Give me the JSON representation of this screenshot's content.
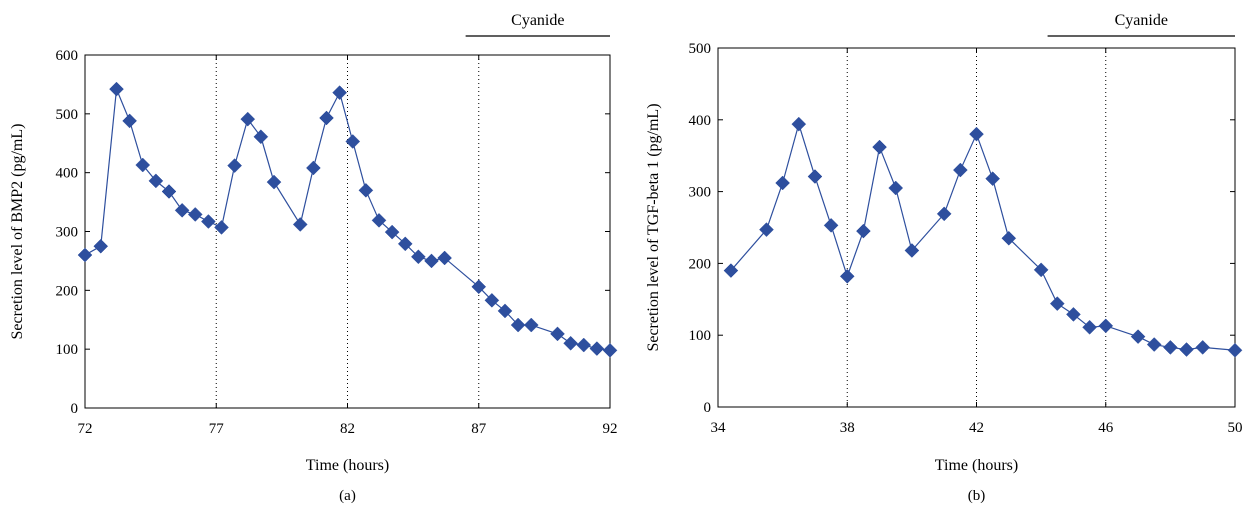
{
  "chart_data": [
    {
      "type": "line",
      "panel_label": "(a)",
      "xlabel": "Time (hours)",
      "ylabel": "Secretion level of BMP2 (pg/mL)",
      "xlim": [
        72,
        92
      ],
      "ylim": [
        0,
        600
      ],
      "xticks": [
        "72",
        "77",
        "82",
        "87",
        "92"
      ],
      "yticks": [
        "0",
        "100",
        "200",
        "300",
        "400",
        "500",
        "600"
      ],
      "vlines": [
        77,
        82,
        87
      ],
      "annotation": {
        "label": "Cyanide",
        "x_start": 86.5,
        "x_end": 92
      },
      "series": [
        {
          "color": "#2e4f9e",
          "marker": "diamond",
          "points": [
            [
              72.0,
              260
            ],
            [
              72.6,
              275
            ],
            [
              73.2,
              542
            ],
            [
              73.7,
              488
            ],
            [
              74.2,
              413
            ],
            [
              74.7,
              386
            ],
            [
              75.2,
              368
            ],
            [
              75.7,
              336
            ],
            [
              76.2,
              329
            ],
            [
              76.7,
              317
            ],
            [
              77.2,
              307
            ],
            [
              77.7,
              412
            ],
            [
              78.2,
              491
            ],
            [
              78.7,
              461
            ],
            [
              79.2,
              384
            ],
            [
              80.2,
              312
            ],
            [
              80.7,
              408
            ],
            [
              81.2,
              493
            ],
            [
              81.7,
              536
            ],
            [
              82.2,
              453
            ],
            [
              82.7,
              370
            ],
            [
              83.2,
              319
            ],
            [
              83.7,
              299
            ],
            [
              84.2,
              279
            ],
            [
              84.7,
              257
            ],
            [
              85.2,
              250
            ],
            [
              85.7,
              255
            ],
            [
              87.0,
              206
            ],
            [
              87.5,
              183
            ],
            [
              88.0,
              165
            ],
            [
              88.5,
              141
            ],
            [
              89.0,
              141
            ],
            [
              90.0,
              126
            ],
            [
              90.5,
              110
            ],
            [
              91.0,
              107
            ],
            [
              91.5,
              101
            ],
            [
              92.0,
              98
            ]
          ]
        }
      ]
    },
    {
      "type": "line",
      "panel_label": "(b)",
      "xlabel": "Time (hours)",
      "ylabel": "Secretion level of TGF-beta 1 (pg/mL)",
      "xlim": [
        34,
        50
      ],
      "ylim": [
        0,
        500
      ],
      "xticks": [
        "34",
        "38",
        "42",
        "46",
        "50"
      ],
      "yticks": [
        "0",
        "100",
        "200",
        "300",
        "400",
        "500"
      ],
      "vlines": [
        38,
        42,
        46
      ],
      "annotation": {
        "label": "Cyanide",
        "x_start": 44.2,
        "x_end": 50
      },
      "series": [
        {
          "color": "#2e4f9e",
          "marker": "diamond",
          "points": [
            [
              34.4,
              190
            ],
            [
              35.5,
              247
            ],
            [
              36.0,
              312
            ],
            [
              36.5,
              394
            ],
            [
              37.0,
              321
            ],
            [
              37.5,
              253
            ],
            [
              38.0,
              182
            ],
            [
              38.5,
              245
            ],
            [
              39.0,
              362
            ],
            [
              39.5,
              305
            ],
            [
              40.0,
              218
            ],
            [
              41.0,
              269
            ],
            [
              41.5,
              330
            ],
            [
              42.0,
              380
            ],
            [
              42.5,
              318
            ],
            [
              43.0,
              235
            ],
            [
              44.0,
              191
            ],
            [
              44.5,
              144
            ],
            [
              45.0,
              129
            ],
            [
              45.5,
              111
            ],
            [
              46.0,
              113
            ],
            [
              47.0,
              98
            ],
            [
              47.5,
              87
            ],
            [
              48.0,
              83
            ],
            [
              48.5,
              80
            ],
            [
              49.0,
              83
            ],
            [
              50.0,
              79
            ]
          ]
        }
      ]
    }
  ]
}
